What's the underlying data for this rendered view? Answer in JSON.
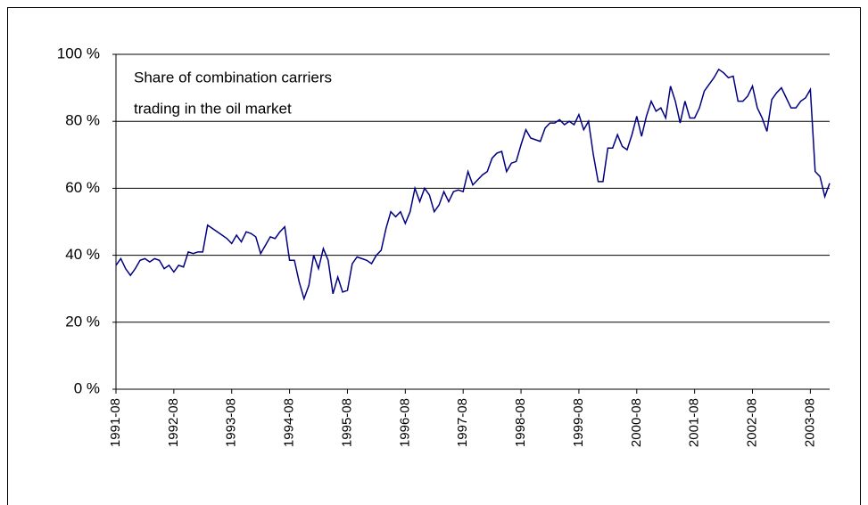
{
  "chart_data": {
    "type": "line",
    "annotation": [
      "Share of combination carriers",
      "trading in the oil market"
    ],
    "categories": [
      "1991-08",
      null,
      null,
      null,
      null,
      null,
      null,
      null,
      null,
      null,
      null,
      null,
      "1992-08",
      null,
      null,
      null,
      null,
      null,
      null,
      null,
      null,
      null,
      null,
      null,
      "1993-08",
      null,
      null,
      null,
      null,
      null,
      null,
      null,
      null,
      null,
      null,
      null,
      "1994-08",
      null,
      null,
      null,
      null,
      null,
      null,
      null,
      null,
      null,
      null,
      null,
      "1995-08",
      null,
      null,
      null,
      null,
      null,
      null,
      null,
      null,
      null,
      null,
      null,
      "1996-08",
      null,
      null,
      null,
      null,
      null,
      null,
      null,
      null,
      null,
      null,
      null,
      "1997-08",
      null,
      null,
      null,
      null,
      null,
      null,
      null,
      null,
      null,
      null,
      null,
      "1998-08",
      null,
      null,
      null,
      null,
      null,
      null,
      null,
      null,
      null,
      null,
      null,
      "1999-08",
      null,
      null,
      null,
      null,
      null,
      null,
      null,
      null,
      null,
      null,
      null,
      "2000-08",
      null,
      null,
      null,
      null,
      null,
      null,
      null,
      null,
      null,
      null,
      null,
      "2001-08",
      null,
      null,
      null,
      null,
      null,
      null,
      null,
      null,
      null,
      null,
      null,
      "2002-08",
      null,
      null,
      null,
      null,
      null,
      null,
      null,
      null,
      null,
      null,
      null,
      "2003-08",
      null,
      null,
      null,
      null
    ],
    "series": [
      {
        "color": "#000080",
        "values": [
          37,
          39,
          36,
          34,
          36,
          38.5,
          39,
          38,
          39,
          38.5,
          36,
          37,
          35,
          37,
          36.5,
          41,
          40.5,
          41,
          41,
          49,
          48,
          47,
          46,
          45,
          43.5,
          46,
          44,
          47,
          46.5,
          45.5,
          40.5,
          43,
          45.5,
          45,
          47,
          48.5,
          38.5,
          38.5,
          32,
          27,
          31,
          40,
          36,
          42,
          38.5,
          28.5,
          33.5,
          29,
          29.5,
          37.5,
          39.5,
          39,
          38.5,
          37.5,
          40,
          41.5,
          48,
          53,
          51.5,
          53,
          49.5,
          53,
          60,
          56,
          60,
          58,
          53,
          55,
          59,
          56,
          59,
          59.5,
          59,
          65,
          61,
          62.5,
          64,
          65,
          69,
          70.5,
          71,
          65,
          67.5,
          68,
          73,
          77.5,
          75,
          74.5,
          74,
          78,
          79.5,
          79.5,
          80.5,
          79,
          80,
          79,
          82,
          77.5,
          80,
          70,
          62,
          62,
          72,
          72,
          76,
          72.5,
          71.5,
          76,
          81.5,
          75.5,
          81.5,
          86,
          83,
          84,
          81,
          90.5,
          86,
          79.5,
          86,
          81,
          81,
          84,
          89,
          91,
          93,
          95.5,
          94.5,
          93,
          93.5,
          86,
          86,
          87.5,
          90.5,
          84,
          81,
          77,
          86.5,
          88.5,
          90,
          87,
          84,
          84,
          86,
          87,
          89.5,
          65,
          63.5,
          57.5,
          61.5
        ]
      }
    ],
    "ylim": [
      0,
      100
    ],
    "yticks": [
      {
        "value": 0,
        "label": "0 %"
      },
      {
        "value": 20,
        "label": "20 %"
      },
      {
        "value": 40,
        "label": "40 %"
      },
      {
        "value": 60,
        "label": "60 %"
      },
      {
        "value": 80,
        "label": "80 %"
      },
      {
        "value": 100,
        "label": "100 %"
      }
    ],
    "grid": true
  }
}
